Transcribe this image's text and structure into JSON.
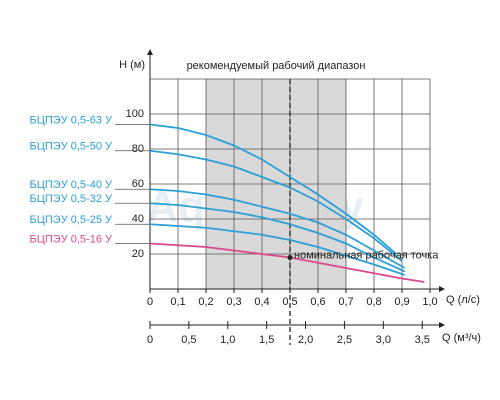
{
  "chart_data": {
    "type": "line",
    "title": "рекомендуемый рабочий диапазон",
    "y_label": "H (м)",
    "x_label": "Q (л/с)",
    "x2_label": "Q (м³/ч)",
    "watermark": "Aquastory",
    "xlim": [
      0,
      1.0
    ],
    "xticks": [
      0,
      {
        "value": 0.1,
        "label": "0,1"
      },
      {
        "value": 0.2,
        "label": "0,2"
      },
      {
        "value": 0.3,
        "label": "0,3"
      },
      {
        "value": 0.4,
        "label": "0,4"
      },
      {
        "value": 0.5,
        "label": "0,5"
      },
      {
        "value": 0.6,
        "label": "0,6"
      },
      {
        "value": 0.7,
        "label": "0,7"
      },
      {
        "value": 0.8,
        "label": "0,8"
      },
      {
        "value": 0.9,
        "label": "0,9"
      },
      {
        "value": 1.0,
        "label": "1,0"
      }
    ],
    "x2lim": [
      0,
      3.6
    ],
    "x2ticks": [
      0,
      {
        "value": 0.5,
        "label": "0,5"
      },
      {
        "value": 1.0,
        "label": "1,0"
      },
      {
        "value": 1.5,
        "label": "1,5"
      },
      {
        "value": 2.0,
        "label": "2,0"
      },
      {
        "value": 2.5,
        "label": "2,5"
      },
      {
        "value": 3.0,
        "label": "3,0"
      },
      {
        "value": 3.5,
        "label": "3,5"
      }
    ],
    "ylim": [
      0,
      120
    ],
    "yticks": [
      20,
      40,
      60,
      80,
      100
    ],
    "grid": true,
    "recommended_range": [
      0.2,
      0.7
    ],
    "nominal": {
      "label": "номинальная рабочая точка",
      "x": 0.5,
      "y": 18
    },
    "series": [
      {
        "name": "БЦПЭУ 0,5-63 У",
        "color": "#2b9fd6",
        "x": [
          0,
          0.1,
          0.2,
          0.3,
          0.4,
          0.5,
          0.6,
          0.7,
          0.8,
          0.88
        ],
        "values": [
          94,
          92,
          88,
          82,
          74,
          64,
          54,
          43,
          31,
          20
        ]
      },
      {
        "name": "БЦПЭУ 0,5-50 У",
        "color": "#2b9fd6",
        "x": [
          0,
          0.1,
          0.2,
          0.3,
          0.4,
          0.5,
          0.6,
          0.7,
          0.8,
          0.9
        ],
        "values": [
          79,
          77,
          74,
          70,
          64,
          58,
          50,
          40,
          29,
          16
        ]
      },
      {
        "name": "БЦПЭУ 0,5-40 У",
        "color": "#2b9fd6",
        "x": [
          0,
          0.1,
          0.2,
          0.3,
          0.4,
          0.5,
          0.6,
          0.7,
          0.8,
          0.91
        ],
        "values": [
          57,
          56,
          54,
          51,
          47,
          43,
          38,
          31,
          22,
          12
        ]
      },
      {
        "name": "БЦПЭУ 0,5-32 У",
        "color": "#2b9fd6",
        "x": [
          0,
          0.1,
          0.2,
          0.3,
          0.4,
          0.5,
          0.6,
          0.7,
          0.8,
          0.91
        ],
        "values": [
          49,
          48,
          46,
          44,
          41,
          37,
          32,
          26,
          18,
          10
        ]
      },
      {
        "name": "БЦПЭУ 0,5-25 У",
        "color": "#2b9fd6",
        "x": [
          0,
          0.1,
          0.2,
          0.3,
          0.4,
          0.5,
          0.6,
          0.7,
          0.8,
          0.91
        ],
        "values": [
          37,
          36,
          35,
          33,
          31,
          28,
          24,
          19,
          14,
          8
        ]
      },
      {
        "name": "БЦПЭУ 0,5-16 У",
        "color": "#d9498a",
        "x": [
          0,
          0.1,
          0.2,
          0.3,
          0.4,
          0.5,
          0.6,
          0.7,
          0.8,
          0.9,
          0.98
        ],
        "values": [
          26,
          25,
          24,
          22,
          20,
          18,
          15,
          12,
          9,
          6,
          4
        ]
      }
    ]
  }
}
